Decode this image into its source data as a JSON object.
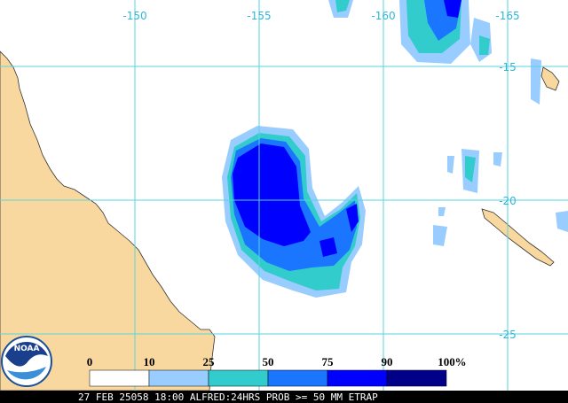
{
  "map": {
    "lon_labels": [
      -150,
      -155,
      -160,
      -165
    ],
    "lat_labels": [
      -15,
      -20,
      -25
    ],
    "legend": {
      "ticks": [
        0,
        10,
        25,
        50,
        75,
        90,
        100
      ],
      "unit": "%",
      "colors": [
        "#ffffff",
        "#99ccff",
        "#33cccc",
        "#1a75ff",
        "#0000ff",
        "#000088"
      ]
    },
    "logo": "NOAA",
    "footer": "27 FEB 25058 18:00 ALFRED:24HRS PROB >= 50 MM ETRAP"
  }
}
